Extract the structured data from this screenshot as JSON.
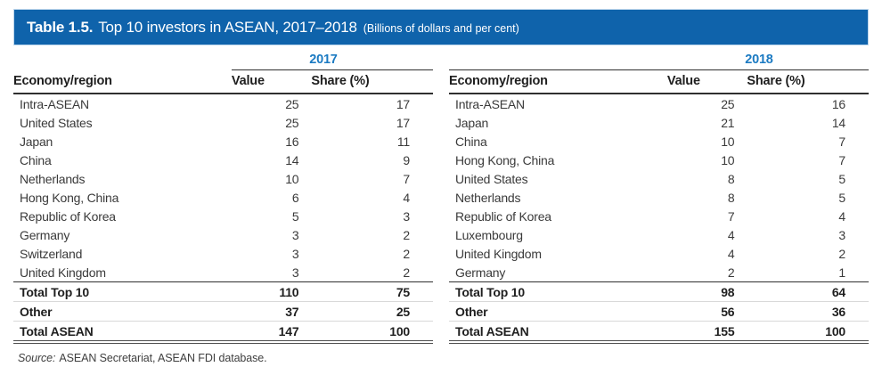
{
  "title_bar": {
    "label": "Table 1.5.",
    "title": "Top 10 investors in ASEAN, 2017–2018",
    "subtitle": "(Billions of dollars and per cent)"
  },
  "columns": {
    "economy": "Economy/region",
    "value": "Value",
    "share": "Share (%)"
  },
  "tables": [
    {
      "year": "2017",
      "rows": [
        {
          "economy": "Intra-ASEAN",
          "value": "25",
          "share": "17"
        },
        {
          "economy": "United States",
          "value": "25",
          "share": "17"
        },
        {
          "economy": "Japan",
          "value": "16",
          "share": "11"
        },
        {
          "economy": "China",
          "value": "14",
          "share": "9"
        },
        {
          "economy": "Netherlands",
          "value": "10",
          "share": "7"
        },
        {
          "economy": "Hong Kong, China",
          "value": "6",
          "share": "4"
        },
        {
          "economy": "Republic of Korea",
          "value": "5",
          "share": "3"
        },
        {
          "economy": "Germany",
          "value": "3",
          "share": "2"
        },
        {
          "economy": "Switzerland",
          "value": "3",
          "share": "2"
        },
        {
          "economy": "United Kingdom",
          "value": "3",
          "share": "2"
        }
      ],
      "totals": [
        {
          "economy": "Total Top 10",
          "value": "110",
          "share": "75"
        },
        {
          "economy": "Other",
          "value": "37",
          "share": "25"
        },
        {
          "economy": "Total ASEAN",
          "value": "147",
          "share": "100"
        }
      ]
    },
    {
      "year": "2018",
      "rows": [
        {
          "economy": "Intra-ASEAN",
          "value": "25",
          "share": "16"
        },
        {
          "economy": "Japan",
          "value": "21",
          "share": "14"
        },
        {
          "economy": "China",
          "value": "10",
          "share": "7"
        },
        {
          "economy": "Hong Kong, China",
          "value": "10",
          "share": "7"
        },
        {
          "economy": "United States",
          "value": "8",
          "share": "5"
        },
        {
          "economy": "Netherlands",
          "value": "8",
          "share": "5"
        },
        {
          "economy": "Republic of Korea",
          "value": "7",
          "share": "4"
        },
        {
          "economy": "Luxembourg",
          "value": "4",
          "share": "3"
        },
        {
          "economy": "United Kingdom",
          "value": "4",
          "share": "2"
        },
        {
          "economy": "Germany",
          "value": "2",
          "share": "1"
        }
      ],
      "totals": [
        {
          "economy": "Total Top 10",
          "value": "98",
          "share": "64"
        },
        {
          "economy": "Other",
          "value": "56",
          "share": "36"
        },
        {
          "economy": "Total ASEAN",
          "value": "155",
          "share": "100"
        }
      ]
    }
  ],
  "source": {
    "prefix": "Source:",
    "text": "ASEAN Secretariat, ASEAN FDI database."
  },
  "colors": {
    "bar_blue": "#0F63AB",
    "year_blue": "#1B7AC2"
  }
}
